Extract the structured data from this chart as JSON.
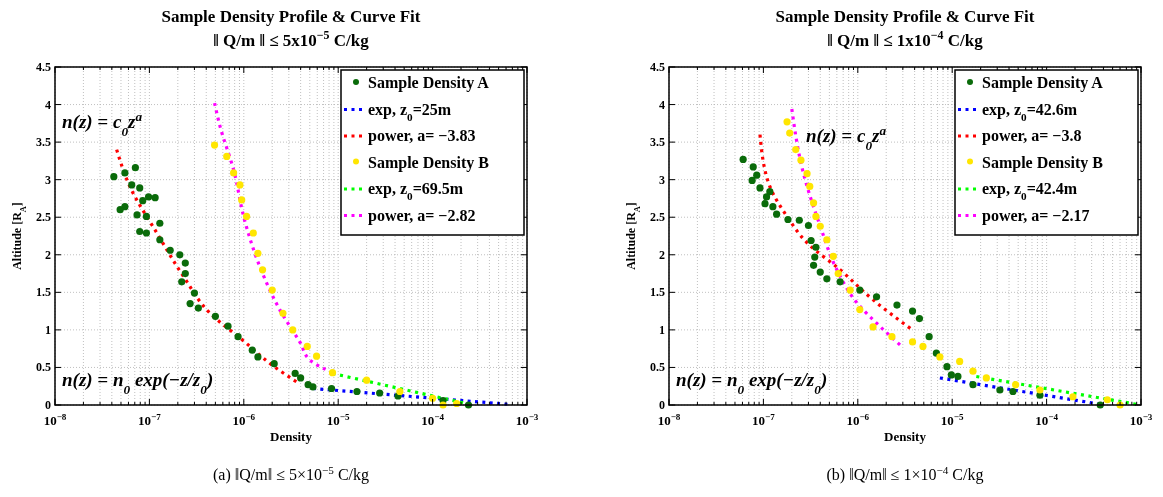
{
  "chart_data": [
    {
      "type": "scatter",
      "title": "Sample Density Profile & Curve Fit",
      "subtitle": "‖ Q/m ‖  ≤  5x10$^{−5}$ C/kg",
      "xlabel": "Density",
      "ylabel": "Altitude [R$_{A}$]",
      "annotations": [
        "n(z) = c$_{0}$z$^{a}$",
        "n(z) = n$_{0}$ exp(−z/z$_{0}$)",
        "(a) ‖Q/m‖ ≤ 5×10$^{−5}$ C/kg"
      ],
      "log": "x",
      "grid": true,
      "legend": "top right",
      "line_style": "dotted",
      "xlim": [
        1e-08,
        0.001
      ],
      "xticks": [
        {
          "value": 1e-08,
          "label": "10$^{−8}$"
        },
        {
          "value": 1e-07,
          "label": "10$^{−7}$"
        },
        {
          "value": 1e-06,
          "label": "10$^{−6}$"
        },
        {
          "value": 1e-05,
          "label": "10$^{−5}$"
        },
        {
          "value": 0.0001,
          "label": "10$^{−4}$"
        },
        {
          "value": 0.001,
          "label": "10$^{−3}$"
        }
      ],
      "ylim": [
        0,
        4.5
      ],
      "yticks": [
        0,
        0.5,
        1,
        1.5,
        2,
        2.5,
        3,
        3.5,
        4,
        4.5
      ],
      "series": [
        {
          "name": "Sample Density A",
          "marker": "circle",
          "color": "#0a6b0a",
          "x": [
            4.2e-08,
            5.5e-08,
            7.1e-08,
            6.5e-08,
            7.9e-08,
            9.8e-08,
            1.15e-07,
            8.5e-08,
            5.5e-08,
            4.9e-08,
            7.4e-08,
            9.3e-08,
            1.29e-07,
            7.9e-08,
            9.3e-08,
            1.29e-07,
            1.66e-07,
            2.1e-07,
            2.4e-07,
            2.4e-07,
            2.2e-07,
            3e-07,
            2.7e-07,
            3.3e-07,
            5e-07,
            6.8e-07,
            8.7e-07,
            1.23e-06,
            1.41e-06,
            2.1e-06,
            3.5e-06,
            4e-06,
            4.8e-06,
            5.4e-06,
            8.5e-06,
            1.58e-05,
            2.75e-05,
            4.3e-05,
            0.000129,
            0.00024
          ],
          "values": [
            3.04,
            3.09,
            3.16,
            2.93,
            2.89,
            2.77,
            2.76,
            2.72,
            2.64,
            2.6,
            2.53,
            2.51,
            2.42,
            2.31,
            2.29,
            2.2,
            2.06,
            2.0,
            1.89,
            1.75,
            1.64,
            1.49,
            1.35,
            1.29,
            1.18,
            1.05,
            0.91,
            0.73,
            0.64,
            0.55,
            0.42,
            0.36,
            0.27,
            0.24,
            0.22,
            0.18,
            0.16,
            0.12,
            0.06,
            0.0
          ]
        },
        {
          "name": "exp, z$_{0}$=25m",
          "type": "line",
          "marker": "none",
          "color": "#0000ff",
          "x": [
            5.4e-06,
            0.00062
          ],
          "values": [
            0.22,
            0.01
          ]
        },
        {
          "name": "power, a= −3.83",
          "type": "line",
          "marker": "none",
          "color": "#ff0000",
          "x": [
            4.5e-08,
            6.2e-08,
            1.2e-07,
            2.3e-07,
            4.4e-07,
            9.8e-07,
            2e-06,
            3.6e-06
          ],
          "values": [
            3.4,
            2.91,
            2.29,
            1.71,
            1.22,
            0.86,
            0.53,
            0.31
          ]
        },
        {
          "name": "Sample Density B",
          "marker": "circle",
          "color": "#ffe600",
          "x": [
            4.9e-07,
            6.6e-07,
            7.8e-07,
            9.1e-07,
            9.5e-07,
            1.07e-06,
            1.26e-06,
            1.41e-06,
            1.58e-06,
            2e-06,
            2.6e-06,
            3.3e-06,
            4.7e-06,
            5.9e-06,
            8.7e-06,
            2e-05,
            4.5e-05,
            0.0001,
            0.000129,
            0.00018
          ],
          "values": [
            3.46,
            3.31,
            3.09,
            2.93,
            2.73,
            2.51,
            2.29,
            2.02,
            1.8,
            1.53,
            1.22,
            1.0,
            0.78,
            0.65,
            0.43,
            0.33,
            0.18,
            0.09,
            0.0,
            0.02
          ]
        },
        {
          "name": "exp, z$_{0}$=69.5m",
          "type": "line",
          "marker": "none",
          "color": "#00ff00",
          "x": [
            8.7e-06,
            0.00021
          ],
          "values": [
            0.42,
            0.03
          ]
        },
        {
          "name": "power, a= −2.82",
          "type": "line",
          "marker": "none",
          "color": "#ff00ff",
          "x": [
            4.9e-07,
            5.6e-07,
            7.8e-07,
            1.02e-06,
            1.48e-06,
            2.4e-06,
            4e-06,
            5e-06,
            8.7e-06
          ],
          "values": [
            4.02,
            3.71,
            3.13,
            2.46,
            1.84,
            1.27,
            0.82,
            0.6,
            0.43
          ]
        }
      ]
    },
    {
      "type": "scatter",
      "title": "Sample Density Profile & Curve Fit",
      "subtitle": "‖ Q/m ‖  ≤  1x10$^{−4}$ C/kg",
      "xlabel": "Density",
      "ylabel": "Altitude [R$_{A}$]",
      "annotations": [
        "n(z) = c$_{0}$z$^{a}$",
        "n(z) = n$_{0}$ exp(−z/z$_{0}$)",
        "(b) ‖Q/m‖ ≤ 1×10$^{−4}$ C/kg"
      ],
      "log": "x",
      "grid": true,
      "legend": "top right",
      "line_style": "dotted",
      "xlim": [
        1e-08,
        0.001
      ],
      "xticks": [
        {
          "value": 1e-08,
          "label": "10$^{−8}$"
        },
        {
          "value": 1e-07,
          "label": "10$^{−7}$"
        },
        {
          "value": 1e-06,
          "label": "10$^{−6}$"
        },
        {
          "value": 1e-05,
          "label": "10$^{−5}$"
        },
        {
          "value": 0.0001,
          "label": "10$^{−4}$"
        },
        {
          "value": 0.001,
          "label": "10$^{−3}$"
        }
      ],
      "ylim": [
        0,
        4.5
      ],
      "yticks": [
        0,
        0.5,
        1,
        1.5,
        2,
        2.5,
        3,
        3.5,
        4,
        4.5
      ],
      "series": [
        {
          "name": "Sample Density A",
          "marker": "circle",
          "color": "#0a6b0a",
          "x": [
            6.1e-08,
            7.8e-08,
            8.5e-08,
            7.6e-08,
            9.2e-08,
            1.17e-07,
            1.08e-07,
            1.04e-07,
            1.26e-07,
            1.38e-07,
            1.82e-07,
            2.4e-07,
            3e-07,
            3.2e-07,
            3.6e-07,
            3.5e-07,
            3.4e-07,
            4e-07,
            4.7e-07,
            6.5e-07,
            1.05e-06,
            1.58e-06,
            2.6e-06,
            3.8e-06,
            4.5e-06,
            5.7e-06,
            6.8e-06,
            8.8e-06,
            9.8e-06,
            1.15e-05,
            1.66e-05,
            3.2e-05,
            4.4e-05,
            8.5e-05,
            0.00037
          ],
          "values": [
            3.27,
            3.17,
            3.06,
            2.99,
            2.89,
            2.84,
            2.77,
            2.68,
            2.64,
            2.54,
            2.47,
            2.46,
            2.39,
            2.19,
            2.1,
            1.97,
            1.86,
            1.77,
            1.68,
            1.64,
            1.53,
            1.44,
            1.33,
            1.25,
            1.15,
            0.91,
            0.69,
            0.51,
            0.4,
            0.38,
            0.27,
            0.2,
            0.18,
            0.13,
            0.0
          ]
        },
        {
          "name": "exp, z$_{0}$=42.6m",
          "type": "line",
          "marker": "none",
          "color": "#0000ff",
          "x": [
            7.4e-06,
            0.00037
          ],
          "values": [
            0.36,
            0.01
          ]
        },
        {
          "name": "power, a= −3.8",
          "type": "line",
          "marker": "none",
          "color": "#ff0000",
          "x": [
            9.2e-08,
            1.17e-07,
            1.78e-07,
            2.9e-07,
            6.5e-07,
            1.45e-06,
            3.6e-06
          ],
          "values": [
            3.6,
            2.91,
            2.51,
            2.16,
            1.8,
            1.4,
            1.02
          ]
        },
        {
          "name": "Sample Density B",
          "marker": "circle",
          "color": "#ffe600",
          "x": [
            1.78e-07,
            1.9e-07,
            2.2e-07,
            2.5e-07,
            2.9e-07,
            3.1e-07,
            3.4e-07,
            3.6e-07,
            4e-07,
            4.7e-07,
            5.5e-07,
            6.2e-07,
            8.3e-07,
            1.05e-06,
            1.45e-06,
            2.3e-06,
            3.8e-06,
            4.9e-06,
            7.4e-06,
            1.2e-05,
            1.66e-05,
            2.3e-05,
            4.7e-05,
            8.5e-05,
            0.00019,
            0.00044,
            0.0006
          ],
          "values": [
            3.77,
            3.62,
            3.4,
            3.26,
            3.08,
            2.91,
            2.69,
            2.51,
            2.38,
            2.2,
            1.98,
            1.75,
            1.53,
            1.27,
            1.04,
            0.91,
            0.84,
            0.78,
            0.64,
            0.58,
            0.45,
            0.36,
            0.27,
            0.2,
            0.11,
            0.07,
            0.0
          ]
        },
        {
          "name": "exp, z$_{0}$=42.4m",
          "type": "line",
          "marker": "none",
          "color": "#00ff00",
          "x": [
            1.8e-05,
            0.00089
          ],
          "values": [
            0.38,
            0.01
          ]
        },
        {
          "name": "power, a= −2.17",
          "type": "line",
          "marker": "none",
          "color": "#ff00ff",
          "x": [
            2e-07,
            2.6e-07,
            4e-07,
            6e-07,
            9.8e-07,
            1.74e-06,
            2.8e-06
          ],
          "values": [
            3.94,
            3.13,
            2.38,
            1.8,
            1.36,
            1.04,
            0.8
          ]
        }
      ]
    }
  ]
}
